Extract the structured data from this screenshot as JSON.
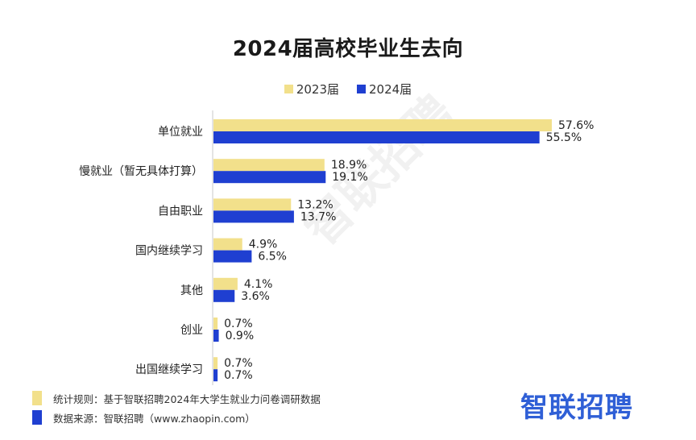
{
  "colors": {
    "y2023": "#f2e08b",
    "y2024": "#1f3fd1",
    "brand": "#2f5fd6",
    "axis": "#c8c8c8"
  },
  "chart_data": {
    "type": "bar",
    "orientation": "horizontal",
    "title": "2024届高校毕业生去向",
    "categories": [
      "单位就业",
      "慢就业（暂无具体打算）",
      "自由职业",
      "国内继续学习",
      "其他",
      "创业",
      "出国继续学习"
    ],
    "series": [
      {
        "name": "2023届",
        "values": [
          57.6,
          18.9,
          13.2,
          4.9,
          4.1,
          0.7,
          0.7
        ],
        "labels": [
          "57.6%",
          "18.9%",
          "13.2%",
          "4.9%",
          "4.1%",
          "0.7%",
          "0.7%"
        ]
      },
      {
        "name": "2024届",
        "values": [
          55.5,
          19.1,
          13.7,
          6.5,
          3.6,
          0.9,
          0.7
        ],
        "labels": [
          "55.5%",
          "19.1%",
          "13.7%",
          "6.5%",
          "3.6%",
          "0.9%",
          "0.7%"
        ]
      }
    ],
    "unit": "%",
    "xlim": [
      0,
      60
    ],
    "legend_position": "top-center"
  },
  "notes": {
    "rule": "统计规则：基于智联招聘2024年大学生就业力问卷调研数据",
    "source": "数据来源：智联招聘（www.zhaopin.com）"
  },
  "brand": {
    "logo_text": "智联招聘"
  },
  "watermark": {
    "text": "智联招聘"
  }
}
